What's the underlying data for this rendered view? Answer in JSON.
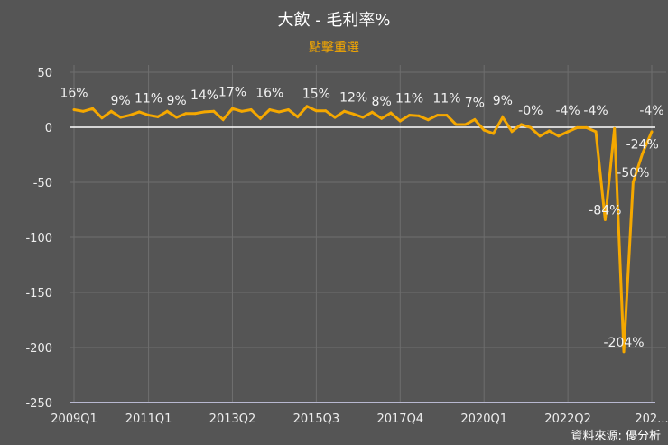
{
  "header": {
    "title": "大飲 - 毛利率%",
    "subtitle": "點擊重選"
  },
  "footer": {
    "source": "資料來源: 優分析"
  },
  "colors": {
    "background": "#555555",
    "line": "#f5a800",
    "grid": "#6e6e6e",
    "zero_line": "#ffffff"
  },
  "chart_data": {
    "type": "line",
    "title": "大飲 - 毛利率%",
    "ylim": [
      -250,
      50
    ],
    "yticks": [
      50,
      0,
      -50,
      -100,
      -150,
      -200,
      -250
    ],
    "xtick_labels": [
      {
        "index": 0,
        "label": "2009Q1"
      },
      {
        "index": 8,
        "label": "2011Q1"
      },
      {
        "index": 17,
        "label": "2013Q2"
      },
      {
        "index": 26,
        "label": "2015Q3"
      },
      {
        "index": 35,
        "label": "2017Q4"
      },
      {
        "index": 44,
        "label": "2020Q1"
      },
      {
        "index": 53,
        "label": "2022Q2"
      },
      {
        "index": 62,
        "label": "202..."
      }
    ],
    "series": [
      {
        "name": "毛利率%",
        "values": [
          16,
          14.5,
          17,
          8.5,
          14.5,
          9,
          11,
          14,
          11,
          9.5,
          14.5,
          9,
          12.5,
          12.5,
          14,
          14.5,
          7,
          17,
          14.5,
          16,
          8,
          16,
          14,
          16,
          9.5,
          19,
          15,
          15,
          9,
          14.5,
          12,
          9,
          13.7,
          8,
          13,
          5.7,
          11,
          10.4,
          6.8,
          11,
          11,
          2.5,
          2.5,
          7,
          -2.5,
          -5.7,
          9,
          -3.8,
          2.5,
          -0.3,
          -8,
          -3.3,
          -8,
          -4,
          -0.3,
          -0.3,
          -4,
          -84,
          -1,
          -204,
          -50,
          -24,
          -4
        ]
      }
    ],
    "data_labels": [
      {
        "index": 0,
        "text": "16%"
      },
      {
        "index": 5,
        "text": "9%"
      },
      {
        "index": 8,
        "text": "11%"
      },
      {
        "index": 11,
        "text": "9%"
      },
      {
        "index": 14,
        "text": "14%"
      },
      {
        "index": 17,
        "text": "17%"
      },
      {
        "index": 21,
        "text": "16%"
      },
      {
        "index": 26,
        "text": "15%"
      },
      {
        "index": 30,
        "text": "12%"
      },
      {
        "index": 33,
        "text": "8%"
      },
      {
        "index": 36,
        "text": "11%"
      },
      {
        "index": 40,
        "text": "11%"
      },
      {
        "index": 43,
        "text": "7%"
      },
      {
        "index": 46,
        "text": "9%"
      },
      {
        "index": 49,
        "text": "-0%"
      },
      {
        "index": 53,
        "text": "-4%"
      },
      {
        "index": 56,
        "text": "-4%"
      },
      {
        "index": 57,
        "text": "-84%"
      },
      {
        "index": 59,
        "text": "-204%"
      },
      {
        "index": 60,
        "text": "-50%"
      },
      {
        "index": 61,
        "text": "-24%"
      },
      {
        "index": 62,
        "text": "-4%"
      }
    ]
  }
}
